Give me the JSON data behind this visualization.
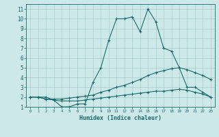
{
  "xlabel": "Humidex (Indice chaleur)",
  "bg_color": "#cce8e8",
  "line_color": "#1a6b6b",
  "grid_color": "#aacccc",
  "xlim": [
    -0.5,
    23.5
  ],
  "ylim": [
    1,
    11.5
  ],
  "xticks": [
    0,
    1,
    2,
    3,
    4,
    5,
    6,
    7,
    8,
    9,
    10,
    11,
    12,
    13,
    14,
    15,
    16,
    17,
    18,
    19,
    20,
    21,
    22,
    23
  ],
  "yticks": [
    1,
    2,
    3,
    4,
    5,
    6,
    7,
    8,
    9,
    10,
    11
  ],
  "series": [
    {
      "x": [
        0,
        1,
        2,
        3,
        4,
        5,
        6,
        7,
        8,
        9,
        10,
        11,
        12,
        13,
        14,
        15,
        16,
        17,
        18,
        19,
        20,
        21,
        22,
        23
      ],
      "y": [
        2,
        2,
        2,
        1.7,
        1,
        1,
        1.3,
        1.3,
        3.5,
        5,
        7.8,
        10,
        10,
        10.2,
        8.7,
        11,
        9.7,
        7,
        6.7,
        5,
        3,
        3,
        2.5,
        2
      ]
    },
    {
      "x": [
        0,
        1,
        2,
        3,
        4,
        5,
        6,
        7,
        8,
        9,
        10,
        11,
        12,
        13,
        14,
        15,
        16,
        17,
        18,
        19,
        20,
        21,
        22,
        23
      ],
      "y": [
        2,
        2,
        1.8,
        1.8,
        1.8,
        1.9,
        2,
        2.1,
        2.2,
        2.5,
        2.7,
        3,
        3.2,
        3.5,
        3.8,
        4.2,
        4.5,
        4.7,
        4.9,
        5,
        4.8,
        4.5,
        4.2,
        3.8
      ]
    },
    {
      "x": [
        0,
        1,
        2,
        3,
        4,
        5,
        6,
        7,
        8,
        9,
        10,
        11,
        12,
        13,
        14,
        15,
        16,
        17,
        18,
        19,
        20,
        21,
        22,
        23
      ],
      "y": [
        2,
        2,
        1.8,
        1.7,
        1.6,
        1.6,
        1.6,
        1.7,
        1.8,
        1.9,
        2,
        2.1,
        2.2,
        2.3,
        2.4,
        2.5,
        2.6,
        2.6,
        2.7,
        2.8,
        2.7,
        2.5,
        2.3,
        2
      ]
    }
  ]
}
